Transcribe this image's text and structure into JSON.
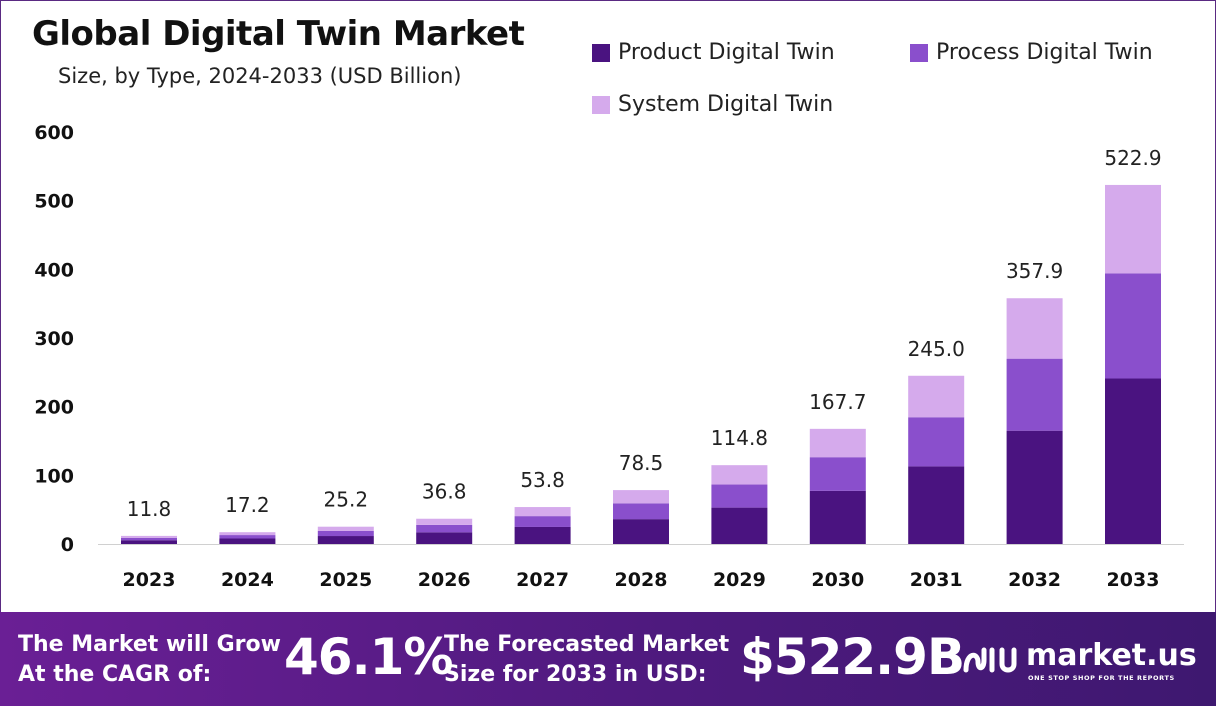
{
  "header": {
    "title": "Global Digital Twin Market",
    "subtitle": "Size, by Type, 2024-2033 (USD Billion)"
  },
  "chart_data": {
    "type": "bar",
    "stacked": true,
    "categories": [
      "2023",
      "2024",
      "2025",
      "2026",
      "2027",
      "2028",
      "2029",
      "2030",
      "2031",
      "2032",
      "2033"
    ],
    "series": [
      {
        "name": "Product Digital Twin",
        "color": "#4a1380",
        "values": [
          5.5,
          8.0,
          11.6,
          17.0,
          24.8,
          36.2,
          53.0,
          77.4,
          113.0,
          165.0,
          241.0
        ]
      },
      {
        "name": "Process Digital Twin",
        "color": "#8a4fcc",
        "values": [
          3.5,
          5.0,
          7.4,
          10.8,
          15.8,
          23.0,
          33.6,
          49.0,
          71.6,
          104.9,
          153.0
        ]
      },
      {
        "name": "System Digital Twin",
        "color": "#d5aaec",
        "values": [
          2.8,
          4.2,
          6.2,
          9.0,
          13.2,
          19.3,
          28.2,
          41.3,
          60.4,
          88.0,
          128.9
        ]
      }
    ],
    "totals": [
      "11.8",
      "17.2",
      "25.2",
      "36.8",
      "53.8",
      "78.5",
      "114.8",
      "167.7",
      "245.0",
      "357.9",
      "522.9"
    ],
    "y_ticks": [
      "0",
      "100",
      "200",
      "300",
      "400",
      "500",
      "600"
    ],
    "ylim": [
      0,
      600
    ],
    "grid": false,
    "legend_position": "top-right"
  },
  "footer": {
    "cagr_line1": "The Market will Grow",
    "cagr_line2": "At the CAGR of:",
    "cagr_value": "46.1%",
    "size_line1": "The Forecasted Market",
    "size_line2": "Size for 2033 in USD:",
    "size_value": "$522.9B",
    "brand": "market.us",
    "tagline": "ONE STOP SHOP FOR THE REPORTS",
    "logo_icon": "market-us-logo-icon"
  }
}
